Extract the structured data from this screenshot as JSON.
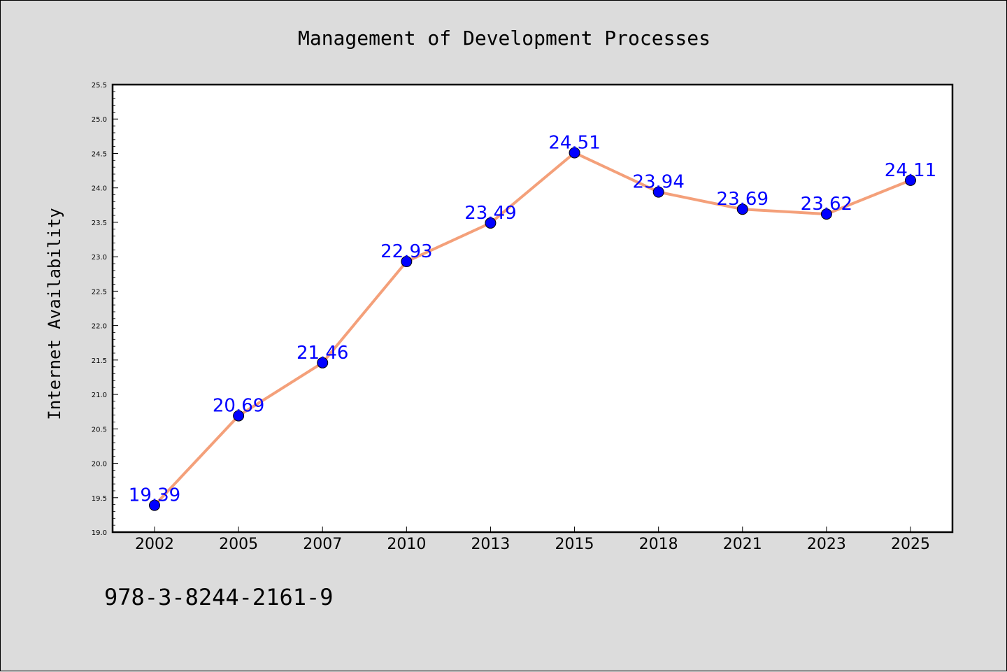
{
  "chart_data": {
    "type": "line",
    "title": "Management of Development Processes",
    "ylabel": "Internet Availability",
    "xlabel": "",
    "categories": [
      "2002",
      "2005",
      "2007",
      "2010",
      "2013",
      "2015",
      "2018",
      "2021",
      "2023",
      "2025"
    ],
    "series": [
      {
        "values": [
          19.39,
          20.69,
          21.46,
          22.93,
          23.49,
          24.51,
          23.94,
          23.69,
          23.62,
          24.11
        ]
      }
    ],
    "data_labels": [
      "19.39",
      "20.69",
      "21.46",
      "22.93",
      "23.49",
      "24.51",
      "23.94",
      "23.69",
      "23.62",
      "24.11"
    ],
    "ylim": [
      19.0,
      25.5
    ],
    "yticks": [
      "19.0",
      "19.5",
      "20.0",
      "20.5",
      "21.0",
      "21.5",
      "22.0",
      "22.5",
      "23.0",
      "23.5",
      "24.0",
      "24.5",
      "25.0",
      "25.5"
    ],
    "grid": false,
    "line_color": "#f4a07a",
    "marker_color": "#0000ff",
    "label_color": "#0000ff"
  },
  "footnote": "978-3-8244-2161-9"
}
